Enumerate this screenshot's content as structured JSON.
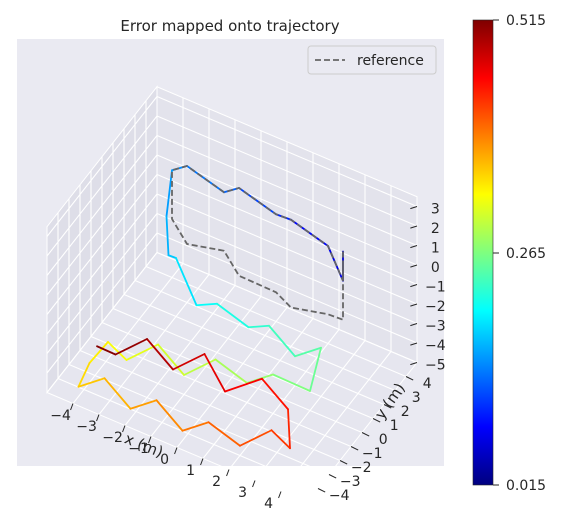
{
  "chart_data": {
    "type": "line",
    "projection": "3d",
    "title": "Error mapped onto trajectory",
    "xlabel": "x (m)",
    "ylabel": "y (m)",
    "zlabel": "",
    "xlim": [
      -5,
      5
    ],
    "ylim": [
      -5,
      5
    ],
    "zlim": [
      -5,
      3.5
    ],
    "x_ticks": [
      "−4",
      "−3",
      "−2",
      "−1",
      "0",
      "1",
      "2",
      "3",
      "4"
    ],
    "y_ticks": [
      "−4",
      "−3",
      "−2",
      "−1",
      "0",
      "1",
      "2",
      "3",
      "4"
    ],
    "z_ticks": [
      "3",
      "2",
      "1",
      "0",
      "−1",
      "−2",
      "−3",
      "−4",
      "−5"
    ],
    "grid": true,
    "legend": {
      "position": "top-right",
      "entries": [
        {
          "label": "reference",
          "style": "dashed",
          "color": "#666666"
        }
      ]
    },
    "colorbar": {
      "colormap": "jet",
      "min": 0.015,
      "max": 0.515,
      "ticks": [
        "0.515",
        "0.265",
        "0.015"
      ],
      "label": ""
    },
    "series": [
      {
        "name": "reference",
        "style": "dashed",
        "color": "#666666",
        "points": [
          [
            3.0,
            3.0,
            1.0
          ],
          [
            3.0,
            3.0,
            -0.5
          ],
          [
            2.0,
            4.0,
            0.0
          ],
          [
            1.0,
            3.0,
            1.5
          ],
          [
            0.0,
            4.0,
            0.5
          ],
          [
            -1.0,
            3.0,
            2.0
          ],
          [
            -2.0,
            4.0,
            0.5
          ],
          [
            -3.0,
            3.0,
            2.0
          ],
          [
            -4.0,
            4.0,
            0.5
          ],
          [
            -4.0,
            4.0,
            -2.0
          ],
          [
            -3.0,
            3.0,
            -2.0
          ],
          [
            -2.0,
            4.0,
            -2.5
          ],
          [
            -1.0,
            3.0,
            -2.5
          ],
          [
            0.0,
            4.0,
            -3.5
          ],
          [
            1.0,
            3.0,
            -3.0
          ],
          [
            2.0,
            4.0,
            -3.5
          ],
          [
            3.0,
            3.0,
            -2.5
          ],
          [
            3.0,
            3.0,
            0.5
          ]
        ]
      },
      {
        "name": "",
        "style": "solid",
        "colored_by": "error",
        "points": [
          [
            3.0,
            3.0,
            1.0
          ],
          [
            3.0,
            3.0,
            -0.5
          ],
          [
            2.0,
            4.0,
            0.0
          ],
          [
            1.0,
            3.0,
            1.5
          ],
          [
            0.0,
            4.0,
            0.5
          ],
          [
            -1.0,
            3.0,
            2.0
          ],
          [
            -2.0,
            4.0,
            0.5
          ],
          [
            -3.0,
            3.0,
            2.0
          ],
          [
            -4.0,
            4.0,
            0.5
          ],
          [
            -4.0,
            3.5,
            -1.5
          ],
          [
            -3.5,
            2.5,
            -2.5
          ],
          [
            -3.0,
            2.0,
            -2.0
          ],
          [
            -2.0,
            1.5,
            -3.5
          ],
          [
            -1.0,
            1.0,
            -2.5
          ],
          [
            0.0,
            1.5,
            -3.5
          ],
          [
            1.0,
            1.0,
            -2.5
          ],
          [
            2.0,
            1.0,
            -3.5
          ],
          [
            3.0,
            1.0,
            -2.5
          ],
          [
            3.0,
            0.0,
            -4.0
          ],
          [
            2.0,
            -1.0,
            -3.0
          ],
          [
            1.0,
            -1.0,
            -4.0
          ],
          [
            0.0,
            -1.5,
            -3.0
          ],
          [
            -1.0,
            -2.0,
            -4.0
          ],
          [
            -2.0,
            -2.0,
            -3.0
          ],
          [
            -3.0,
            -2.5,
            -4.0
          ],
          [
            -3.5,
            -3.0,
            -3.0
          ],
          [
            -4.0,
            -3.5,
            -4.0
          ],
          [
            -4.0,
            -4.5,
            -4.5
          ],
          [
            -3.0,
            -4.5,
            -3.5
          ],
          [
            -2.0,
            -4.5,
            -4.5
          ],
          [
            -1.0,
            -4.5,
            -3.5
          ],
          [
            0.0,
            -4.5,
            -4.5
          ],
          [
            1.0,
            -4.5,
            -3.5
          ],
          [
            2.0,
            -4.0,
            -4.5
          ],
          [
            3.0,
            -3.5,
            -3.5
          ],
          [
            3.5,
            -3.0,
            -4.5
          ],
          [
            3.0,
            -2.0,
            -3.5
          ],
          [
            2.0,
            -2.0,
            -2.5
          ],
          [
            1.0,
            -3.0,
            -3.0
          ],
          [
            0.0,
            -2.5,
            -2.0
          ],
          [
            -1.0,
            -3.0,
            -3.0
          ],
          [
            -2.0,
            -3.0,
            -2.0
          ],
          [
            -3.0,
            -3.5,
            -3.0
          ],
          [
            -3.5,
            -4.0,
            -2.5
          ]
        ],
        "error": [
          0.05,
          0.06,
          0.07,
          0.09,
          0.1,
          0.12,
          0.13,
          0.14,
          0.15,
          0.16,
          0.17,
          0.18,
          0.2,
          0.21,
          0.22,
          0.23,
          0.24,
          0.25,
          0.26,
          0.27,
          0.28,
          0.29,
          0.3,
          0.31,
          0.32,
          0.33,
          0.34,
          0.35,
          0.36,
          0.37,
          0.38,
          0.39,
          0.4,
          0.41,
          0.42,
          0.43,
          0.44,
          0.45,
          0.46,
          0.47,
          0.48,
          0.5,
          0.51,
          0.515
        ]
      }
    ]
  }
}
